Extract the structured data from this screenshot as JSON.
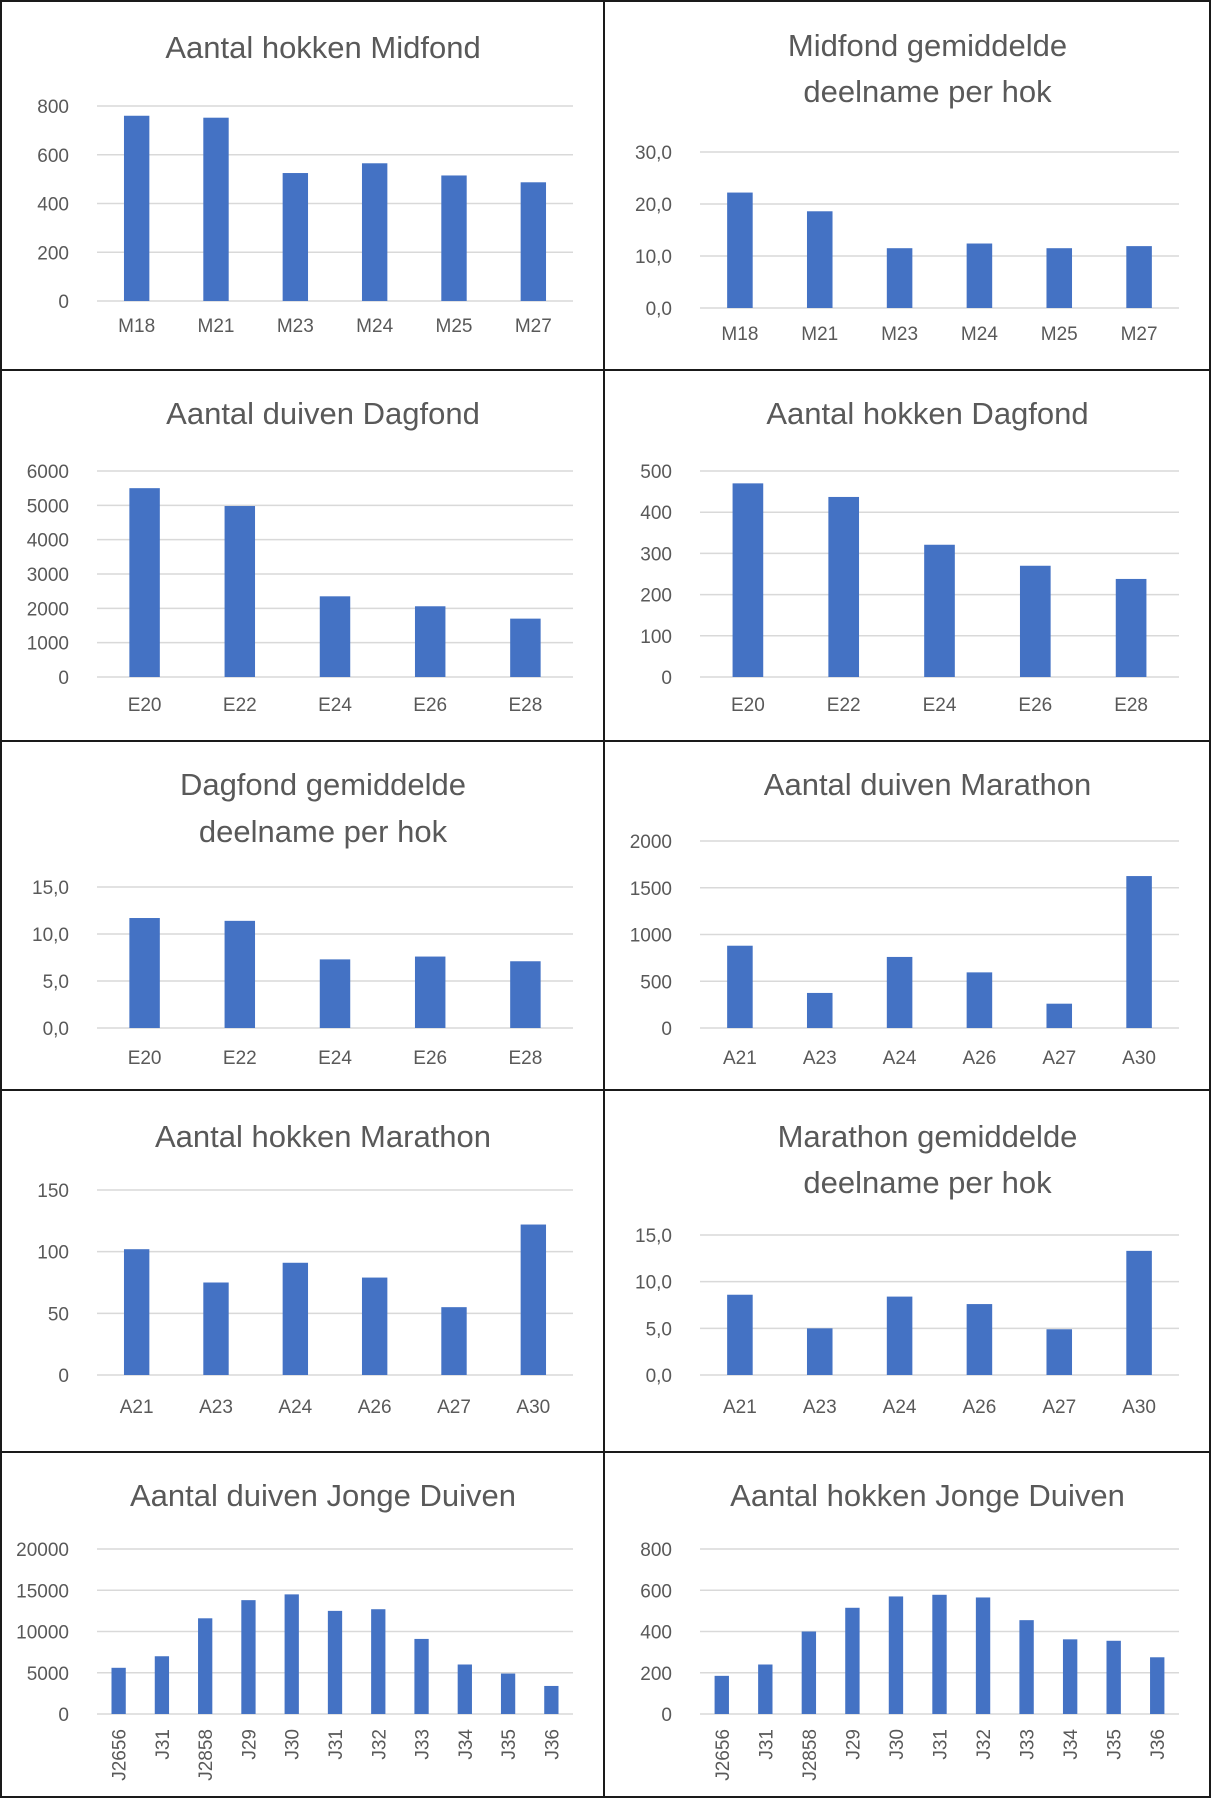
{
  "colors": {
    "bar": "#4472c4",
    "grid": "#d9d9d9",
    "text": "#595959",
    "border": "#1a1a1a"
  },
  "chart_data": [
    {
      "type": "bar",
      "title_lines": [
        "Aantal hokken Midfond"
      ],
      "categories": [
        "M18",
        "M21",
        "M23",
        "M24",
        "M25",
        "M27"
      ],
      "values": [
        760,
        752,
        525,
        565,
        515,
        487
      ],
      "ylim": [
        0,
        800
      ],
      "yticks": [
        0,
        200,
        400,
        600,
        800
      ],
      "ytick_labels": [
        "0",
        "200",
        "400",
        "600",
        "800"
      ],
      "grid": true
    },
    {
      "type": "bar",
      "title_lines": [
        "Midfond gemiddelde",
        "deelname per hok"
      ],
      "categories": [
        "M18",
        "M21",
        "M23",
        "M24",
        "M25",
        "M27"
      ],
      "values": [
        22.2,
        18.6,
        11.5,
        12.4,
        11.5,
        11.9
      ],
      "ylim": [
        0,
        30
      ],
      "yticks": [
        0,
        10,
        20,
        30
      ],
      "ytick_labels": [
        "0,0",
        "10,0",
        "20,0",
        "30,0"
      ],
      "grid": true
    },
    {
      "type": "bar",
      "title_lines": [
        "Aantal duiven Dagfond"
      ],
      "categories": [
        "E20",
        "E22",
        "E24",
        "E26",
        "E28"
      ],
      "values": [
        5500,
        4980,
        2350,
        2060,
        1700
      ],
      "ylim": [
        0,
        6000
      ],
      "yticks": [
        0,
        1000,
        2000,
        3000,
        4000,
        5000,
        6000
      ],
      "ytick_labels": [
        "0",
        "1000",
        "2000",
        "3000",
        "4000",
        "5000",
        "6000"
      ],
      "grid": true
    },
    {
      "type": "bar",
      "title_lines": [
        "Aantal hokken Dagfond"
      ],
      "categories": [
        "E20",
        "E22",
        "E24",
        "E26",
        "E28"
      ],
      "values": [
        470,
        437,
        321,
        270,
        238
      ],
      "ylim": [
        0,
        500
      ],
      "yticks": [
        0,
        100,
        200,
        300,
        400,
        500
      ],
      "ytick_labels": [
        "0",
        "100",
        "200",
        "300",
        "400",
        "500"
      ],
      "grid": true
    },
    {
      "type": "bar",
      "title_lines": [
        "Dagfond gemiddelde",
        "deelname per hok"
      ],
      "categories": [
        "E20",
        "E22",
        "E24",
        "E26",
        "E28"
      ],
      "values": [
        11.7,
        11.4,
        7.3,
        7.6,
        7.1
      ],
      "ylim": [
        0,
        15
      ],
      "yticks": [
        0,
        5,
        10,
        15
      ],
      "ytick_labels": [
        "0,0",
        "5,0",
        "10,0",
        "15,0"
      ],
      "grid": true
    },
    {
      "type": "bar",
      "title_lines": [
        "Aantal duiven Marathon"
      ],
      "categories": [
        "A21",
        "A23",
        "A24",
        "A26",
        "A27",
        "A30"
      ],
      "values": [
        880,
        375,
        760,
        595,
        260,
        1625
      ],
      "ylim": [
        0,
        2000
      ],
      "yticks": [
        0,
        500,
        1000,
        1500,
        2000
      ],
      "ytick_labels": [
        "0",
        "500",
        "1000",
        "1500",
        "2000"
      ],
      "grid": true
    },
    {
      "type": "bar",
      "title_lines": [
        "Aantal hokken Marathon"
      ],
      "categories": [
        "A21",
        "A23",
        "A24",
        "A26",
        "A27",
        "A30"
      ],
      "values": [
        102,
        75,
        91,
        79,
        55,
        122
      ],
      "ylim": [
        0,
        150
      ],
      "yticks": [
        0,
        50,
        100,
        150
      ],
      "ytick_labels": [
        "0",
        "50",
        "100",
        "150"
      ],
      "grid": true
    },
    {
      "type": "bar",
      "title_lines": [
        "Marathon gemiddelde",
        "deelname per hok"
      ],
      "categories": [
        "A21",
        "A23",
        "A24",
        "A26",
        "A27",
        "A30"
      ],
      "values": [
        8.6,
        5.0,
        8.4,
        7.6,
        4.9,
        13.3
      ],
      "ylim": [
        0,
        15
      ],
      "yticks": [
        0,
        5,
        10,
        15
      ],
      "ytick_labels": [
        "0,0",
        "5,0",
        "10,0",
        "15,0"
      ],
      "grid": true
    },
    {
      "type": "bar",
      "title_lines": [
        "Aantal duiven Jonge Duiven"
      ],
      "categories": [
        "J2656",
        "J31",
        "J2858",
        "J29",
        "J30",
        "J31",
        "J32",
        "J33",
        "J34",
        "J35",
        "J36"
      ],
      "values": [
        5600,
        7000,
        11600,
        13800,
        14500,
        12500,
        12700,
        9100,
        6000,
        4900,
        3400
      ],
      "ylim": [
        0,
        20000
      ],
      "yticks": [
        0,
        5000,
        10000,
        15000,
        20000
      ],
      "ytick_labels": [
        "0",
        "5000",
        "10000",
        "15000",
        "20000"
      ],
      "rotated_labels": true,
      "grid": true
    },
    {
      "type": "bar",
      "title_lines": [
        "Aantal hokken Jonge Duiven"
      ],
      "categories": [
        "J2656",
        "J31",
        "J2858",
        "J29",
        "J30",
        "J31",
        "J32",
        "J33",
        "J34",
        "J35",
        "J36"
      ],
      "values": [
        185,
        240,
        400,
        515,
        570,
        578,
        565,
        455,
        362,
        355,
        275
      ],
      "ylim": [
        0,
        800
      ],
      "yticks": [
        0,
        200,
        400,
        600,
        800
      ],
      "ytick_labels": [
        "0",
        "200",
        "400",
        "600",
        "800"
      ],
      "rotated_labels": true,
      "grid": true
    }
  ]
}
